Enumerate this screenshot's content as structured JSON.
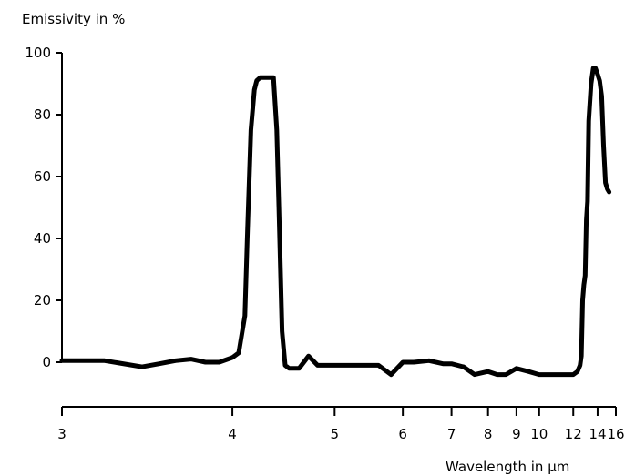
{
  "chart_data": {
    "type": "line",
    "title": "",
    "ylabel": "Emissivity in %",
    "xlabel": "Wavelength in µm",
    "x_scale": "reciprocal",
    "ylim": [
      0,
      100
    ],
    "y_ticks": [
      "0",
      "20",
      "40",
      "60",
      "80",
      "100"
    ],
    "x_ticks": [
      "3",
      "4",
      "5",
      "6",
      "7",
      "8",
      "9",
      "10",
      "12",
      "14",
      "16"
    ],
    "grid": false,
    "legend": "none",
    "line_color": "#000000",
    "series": [
      {
        "x": [
          3.0,
          3.2,
          3.4,
          3.5,
          3.6,
          3.7,
          3.8,
          3.9,
          4.0,
          4.05,
          4.1,
          4.12,
          4.15,
          4.18,
          4.2,
          4.23,
          4.26,
          4.3,
          4.35,
          4.38,
          4.4,
          4.43,
          4.46,
          4.5,
          4.6,
          4.7,
          4.8,
          4.9,
          5.0,
          5.3,
          5.6,
          5.8,
          6.0,
          6.2,
          6.5,
          6.8,
          7.0,
          7.3,
          7.6,
          8.0,
          8.3,
          8.6,
          9.0,
          9.5,
          10.0,
          10.5,
          11.0,
          11.5,
          12.0,
          12.3,
          12.5,
          12.6,
          12.7,
          12.8,
          12.9,
          13.0,
          13.1,
          13.2,
          13.4,
          13.6,
          13.8,
          14.0,
          14.2,
          14.4,
          14.6,
          14.8,
          15.0,
          15.2
        ],
        "y": [
          0.5,
          0.5,
          -1.5,
          -0.5,
          0.5,
          1.0,
          0,
          0,
          1.5,
          3,
          15,
          40,
          75,
          88,
          91,
          92,
          92,
          92,
          92,
          75,
          50,
          10,
          -1,
          -2,
          -2,
          2,
          -1,
          -1,
          -1,
          -1,
          -1,
          -4,
          0,
          0,
          0.5,
          -0.5,
          -0.5,
          -1.5,
          -4,
          -3,
          -4,
          -4,
          -2,
          -3,
          -4,
          -4,
          -4,
          -4,
          -4,
          -3,
          -1,
          2,
          20,
          25,
          28,
          46,
          52,
          78,
          90,
          95,
          95,
          93,
          91,
          86,
          70,
          58,
          56,
          55
        ]
      }
    ]
  }
}
